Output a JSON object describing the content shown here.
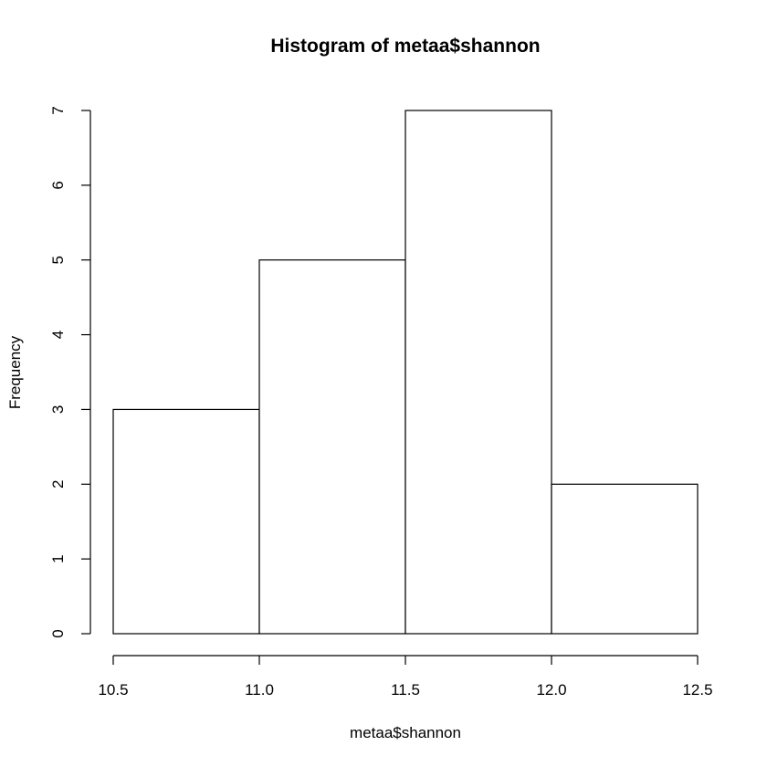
{
  "chart_data": {
    "type": "bar",
    "title": "Histogram of metaa$shannon",
    "xlabel": "metaa$shannon",
    "ylabel": "Frequency",
    "bins": [
      {
        "x0": 10.5,
        "x1": 11.0,
        "count": 3
      },
      {
        "x0": 11.0,
        "x1": 11.5,
        "count": 5
      },
      {
        "x0": 11.5,
        "x1": 12.0,
        "count": 7
      },
      {
        "x0": 12.0,
        "x1": 12.5,
        "count": 2
      }
    ],
    "xlim": [
      10.5,
      12.5
    ],
    "ylim": [
      0,
      7
    ],
    "x_ticks": [
      "10.5",
      "11.0",
      "11.5",
      "12.0",
      "12.5"
    ],
    "y_ticks": [
      "0",
      "1",
      "2",
      "3",
      "4",
      "5",
      "6",
      "7"
    ],
    "grid": false,
    "legend": "none",
    "colors": {
      "bar_fill": "#ffffff",
      "bar_stroke": "#000000",
      "background": "#ffffff"
    }
  }
}
